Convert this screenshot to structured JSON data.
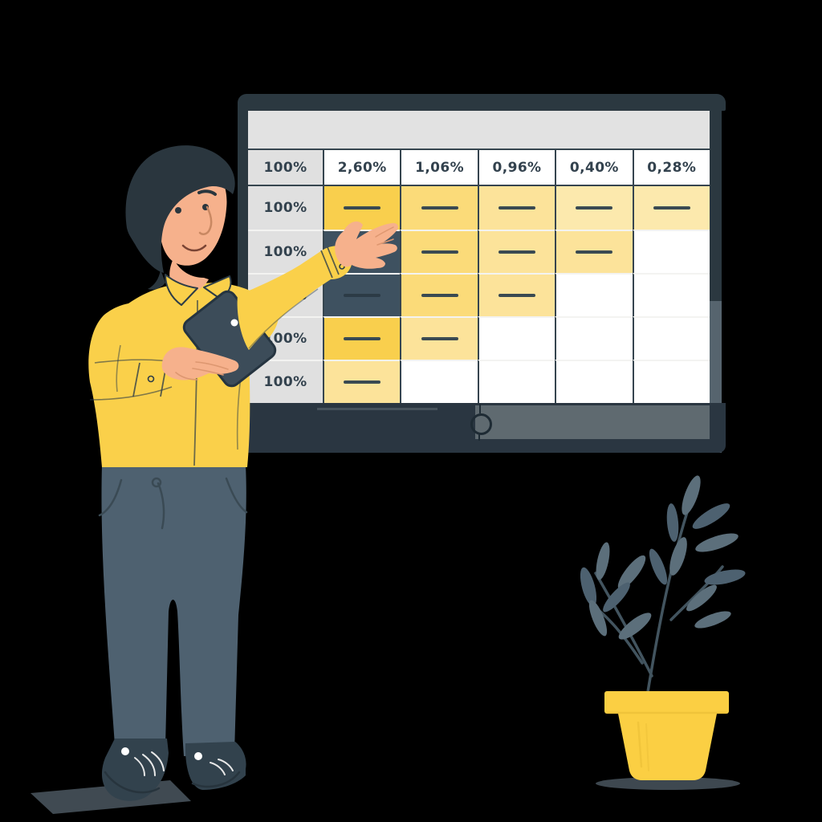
{
  "board": {
    "header": [
      "100%",
      "2,60%",
      "1,06%",
      "0,96%",
      "0,40%",
      "0,28%"
    ],
    "rows": [
      {
        "label": "100%",
        "cells": [
          {
            "fill": "y1",
            "dash": true
          },
          {
            "fill": "y2",
            "dash": true
          },
          {
            "fill": "y3",
            "dash": true
          },
          {
            "fill": "y4",
            "dash": true
          },
          {
            "fill": "y4",
            "dash": true
          }
        ]
      },
      {
        "label": "100%",
        "cells": [
          {
            "fill": "dark",
            "dash": false
          },
          {
            "fill": "y2",
            "dash": true
          },
          {
            "fill": "y3",
            "dash": true
          },
          {
            "fill": "y3",
            "dash": true
          },
          {
            "fill": "white",
            "dash": false
          }
        ]
      },
      {
        "label": "100%",
        "cells": [
          {
            "fill": "dark",
            "dash": "dark"
          },
          {
            "fill": "y2",
            "dash": true
          },
          {
            "fill": "y3",
            "dash": true
          },
          {
            "fill": "white",
            "dash": false
          },
          {
            "fill": "white",
            "dash": false
          }
        ]
      },
      {
        "label": "100%",
        "cells": [
          {
            "fill": "y1",
            "dash": true
          },
          {
            "fill": "y3",
            "dash": true
          },
          {
            "fill": "white",
            "dash": false
          },
          {
            "fill": "white",
            "dash": false
          },
          {
            "fill": "white",
            "dash": false
          }
        ]
      },
      {
        "label": "100%",
        "cells": [
          {
            "fill": "y3",
            "dash": true
          },
          {
            "fill": "white",
            "dash": false
          },
          {
            "fill": "white",
            "dash": false
          },
          {
            "fill": "white",
            "dash": false
          },
          {
            "fill": "white",
            "dash": false
          }
        ]
      }
    ]
  },
  "chart_data": {
    "type": "table",
    "column_headers": [
      "100%",
      "2,60%",
      "1,06%",
      "0,96%",
      "0,40%",
      "0,28%"
    ],
    "row_labels": [
      "100%",
      "100%",
      "100%",
      "100%",
      "100%"
    ],
    "dash_marks_by_row": [
      [
        1,
        1,
        1,
        1,
        1
      ],
      [
        0,
        1,
        1,
        1,
        0
      ],
      [
        1,
        1,
        1,
        0,
        0
      ],
      [
        1,
        1,
        0,
        0,
        0
      ],
      [
        1,
        0,
        0,
        0,
        0
      ]
    ],
    "highlight_fills_by_row": [
      [
        "yellow-strong",
        "yellow-medium",
        "yellow-light",
        "yellow-pale",
        "yellow-pale"
      ],
      [
        "dark-navy",
        "yellow-medium",
        "yellow-light",
        "yellow-light",
        "white"
      ],
      [
        "dark-navy",
        "yellow-medium",
        "yellow-light",
        "white",
        "white"
      ],
      [
        "yellow-strong",
        "yellow-light",
        "white",
        "white",
        "white"
      ],
      [
        "yellow-light",
        "white",
        "white",
        "white",
        "white"
      ]
    ]
  },
  "scene": {
    "elements": [
      "presentation-board",
      "percentage-table",
      "presenter",
      "tablet",
      "potted-plant"
    ],
    "icons": [
      "board-hook-ring",
      "tablet-camera-dot"
    ]
  },
  "colors": {
    "background": "#000000",
    "frame_dark": "#2B3840",
    "surface_gray": "#E2E2E2",
    "cell_yellow_strong": "#F9CF4D",
    "cell_yellow_medium": "#FBDB79",
    "cell_yellow_light": "#FCE39A",
    "cell_yellow_pale": "#FCE9AD",
    "cell_dark_navy": "#3E5160",
    "table_text": "#33424E",
    "shirt_yellow": "#FAD04A",
    "skin": "#F6B18C",
    "pants_slate": "#4E6170",
    "leaf_slate": "#5C6F7B",
    "pot_yellow": "#FBCF43"
  }
}
